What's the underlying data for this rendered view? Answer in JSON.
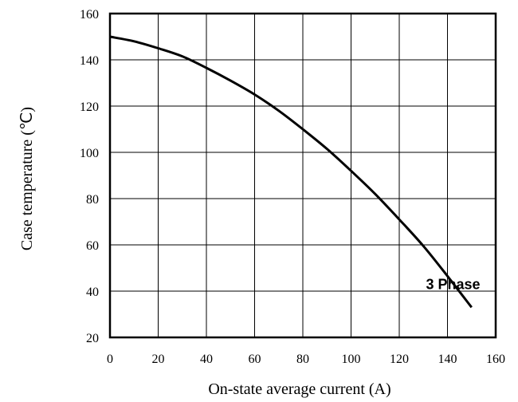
{
  "chart_data": {
    "type": "line",
    "title": "",
    "xlabel": "On-state average current (A)",
    "ylabel": "Case temperature (℃)",
    "xlim": [
      0,
      160
    ],
    "ylim": [
      20,
      160
    ],
    "x_ticks": [
      "0",
      "20",
      "40",
      "60",
      "80",
      "100",
      "120",
      "140",
      "160"
    ],
    "y_ticks": [
      "20",
      "40",
      "60",
      "80",
      "100",
      "120",
      "140",
      "160"
    ],
    "grid": true,
    "legend": "none",
    "annotations": [
      {
        "text": "3 Phase",
        "x": 140,
        "y": 43
      }
    ],
    "series": [
      {
        "name": "3 Phase",
        "color": "#000000",
        "x": [
          0,
          10,
          20,
          30,
          40,
          50,
          60,
          70,
          80,
          90,
          100,
          110,
          120,
          130,
          140,
          150
        ],
        "y": [
          150,
          148,
          145,
          141.5,
          136.5,
          131,
          125,
          118,
          110,
          101.5,
          92,
          82,
          71,
          59.5,
          46.5,
          33
        ]
      }
    ]
  }
}
